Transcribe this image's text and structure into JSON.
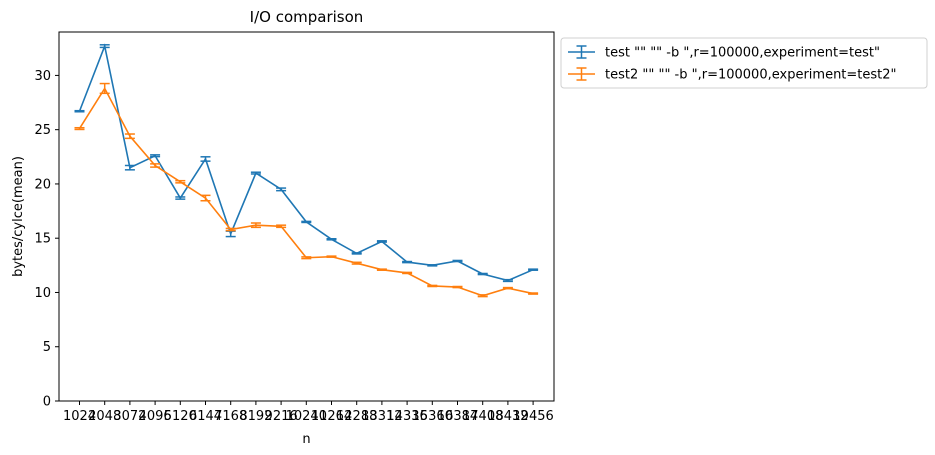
{
  "chart_data": {
    "type": "line",
    "title": "I/O comparison",
    "xlabel": "n",
    "ylabel": "bytes/cylce(mean)",
    "ylim": [
      0,
      34
    ],
    "yticks": [
      0,
      5,
      10,
      15,
      20,
      25,
      30
    ],
    "categories": [
      "1024",
      "2048",
      "3072",
      "4096",
      "5120",
      "6144",
      "7168",
      "8192",
      "9216",
      "10240",
      "11264",
      "12288",
      "13312",
      "14336",
      "15360",
      "16384",
      "17408",
      "18432",
      "19456"
    ],
    "legend_position": "outside-upper-right",
    "grid": false,
    "series": [
      {
        "name": "test \"\"  \"\" -b \",r=100000,experiment=test\"",
        "color": "#1f77b4",
        "values": [
          26.7,
          32.7,
          21.5,
          22.6,
          18.7,
          22.3,
          15.4,
          21.0,
          19.5,
          16.5,
          14.9,
          13.6,
          14.7,
          12.8,
          12.5,
          12.9,
          11.7,
          11.1,
          12.1
        ],
        "errors": [
          0.05,
          0.12,
          0.2,
          0.08,
          0.1,
          0.2,
          0.25,
          0.08,
          0.12,
          0.05,
          0.05,
          0.05,
          0.06,
          0.05,
          0.05,
          0.05,
          0.05,
          0.08,
          0.05
        ]
      },
      {
        "name": "test2 \"\"  \"\" -b \",r=100000,experiment=test2\"",
        "color": "#ff7f0e",
        "values": [
          25.1,
          28.8,
          24.4,
          21.7,
          20.2,
          18.7,
          15.8,
          16.2,
          16.1,
          13.2,
          13.3,
          12.7,
          12.1,
          11.8,
          10.6,
          10.5,
          9.7,
          10.4,
          9.9
        ],
        "errors": [
          0.08,
          0.45,
          0.2,
          0.15,
          0.1,
          0.25,
          0.1,
          0.2,
          0.1,
          0.08,
          0.05,
          0.08,
          0.05,
          0.05,
          0.05,
          0.05,
          0.08,
          0.05,
          0.05
        ]
      }
    ]
  }
}
